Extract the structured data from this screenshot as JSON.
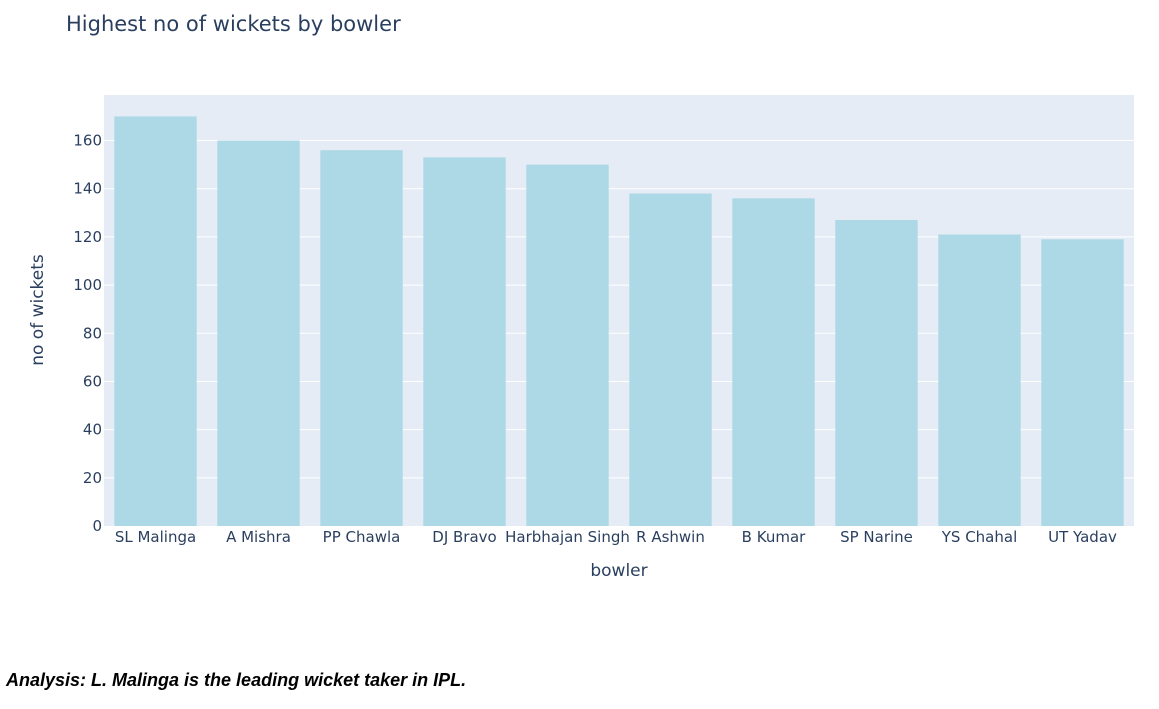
{
  "chart_data": {
    "type": "bar",
    "title": "Highest no of wickets by bowler",
    "xlabel": "bowler",
    "ylabel": "no of wickets",
    "categories": [
      "SL Malinga",
      "A Mishra",
      "PP Chawla",
      "DJ Bravo",
      "Harbhajan Singh",
      "R Ashwin",
      "B Kumar",
      "SP Narine",
      "YS Chahal",
      "UT Yadav"
    ],
    "values": [
      170,
      160,
      156,
      153,
      150,
      138,
      136,
      127,
      121,
      119
    ],
    "ylim": [
      0,
      178.9
    ],
    "yticks": [
      0,
      20,
      40,
      60,
      80,
      100,
      120,
      140,
      160
    ],
    "grid": true,
    "legend": "none",
    "colors": {
      "bar": "#add8e6",
      "plot_background": "#e5ecf6",
      "gridline": "#ffffff",
      "text": "#2a3f5f"
    }
  },
  "analysis_text": "Analysis: L. Malinga is the leading wicket taker in IPL."
}
